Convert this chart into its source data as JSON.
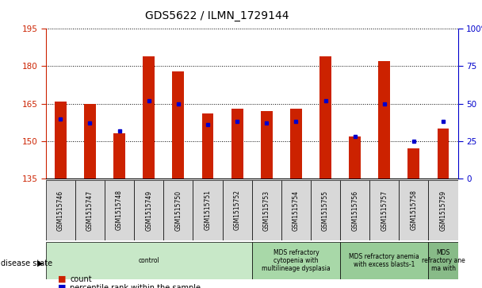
{
  "title": "GDS5622 / ILMN_1729144",
  "samples": [
    "GSM1515746",
    "GSM1515747",
    "GSM1515748",
    "GSM1515749",
    "GSM1515750",
    "GSM1515751",
    "GSM1515752",
    "GSM1515753",
    "GSM1515754",
    "GSM1515755",
    "GSM1515756",
    "GSM1515757",
    "GSM1515758",
    "GSM1515759"
  ],
  "counts": [
    166,
    165,
    153,
    184,
    178,
    161,
    163,
    162,
    163,
    184,
    152,
    182,
    147,
    155
  ],
  "percentile_ranks": [
    40,
    37,
    32,
    52,
    50,
    36,
    38,
    37,
    38,
    52,
    28,
    50,
    25,
    38
  ],
  "ymin": 135,
  "ymax": 195,
  "yticks": [
    135,
    150,
    165,
    180,
    195
  ],
  "yright_min": 0,
  "yright_max": 100,
  "yright_ticks": [
    0,
    25,
    50,
    75,
    100
  ],
  "disease_groups": [
    {
      "label": "control",
      "start": 0,
      "end": 7,
      "color": "#c8e8c8"
    },
    {
      "label": "MDS refractory\ncytopenia with\nmultilineage dysplasia",
      "start": 7,
      "end": 10,
      "color": "#a8d8a8"
    },
    {
      "label": "MDS refractory anemia\nwith excess blasts-1",
      "start": 10,
      "end": 13,
      "color": "#98cc98"
    },
    {
      "label": "MDS\nrefractory ane\nma with",
      "start": 13,
      "end": 14,
      "color": "#88bb88"
    }
  ],
  "bar_color": "#cc2200",
  "dot_color": "#0000cc",
  "left_axis_color": "#cc2200",
  "right_axis_color": "#0000cc",
  "disease_state_label": "disease state"
}
